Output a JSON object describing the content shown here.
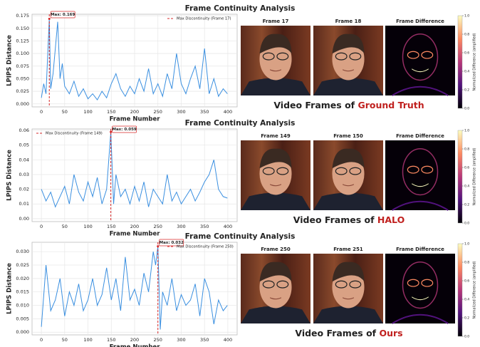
{
  "chart_data": [
    {
      "type": "line",
      "title": "Frame Continuity Analysis",
      "xlabel": "Frame Number",
      "ylabel": "LPIPS Distance",
      "color": "#3a8fe0",
      "grid": true,
      "legend": "upper right",
      "x": [
        0,
        5,
        10,
        17,
        20,
        25,
        30,
        35,
        40,
        45,
        50,
        60,
        70,
        80,
        90,
        100,
        110,
        120,
        130,
        140,
        150,
        160,
        170,
        180,
        190,
        200,
        210,
        220,
        230,
        240,
        250,
        260,
        270,
        280,
        290,
        300,
        310,
        320,
        330,
        340,
        350,
        360,
        370,
        380,
        390,
        399
      ],
      "values": [
        0.012,
        0.04,
        0.02,
        0.169,
        0.03,
        0.06,
        0.11,
        0.163,
        0.05,
        0.08,
        0.035,
        0.02,
        0.045,
        0.015,
        0.03,
        0.01,
        0.02,
        0.008,
        0.025,
        0.012,
        0.04,
        0.06,
        0.03,
        0.015,
        0.035,
        0.02,
        0.05,
        0.025,
        0.07,
        0.02,
        0.04,
        0.015,
        0.06,
        0.03,
        0.1,
        0.04,
        0.02,
        0.05,
        0.075,
        0.03,
        0.11,
        0.02,
        0.05,
        0.015,
        0.03,
        0.02
      ],
      "xlim": [
        -20,
        420
      ],
      "xticks": [
        0,
        50,
        100,
        150,
        200,
        250,
        300,
        350,
        400
      ],
      "ylim": [
        -0.006,
        0.178
      ],
      "yticks": [
        {
          "value": 0,
          "label": "0.000"
        },
        {
          "value": 0.025,
          "label": "0.025"
        },
        {
          "value": 0.05,
          "label": "0.050"
        },
        {
          "value": 0.075,
          "label": "0.075"
        },
        {
          "value": 0.1,
          "label": "0.100"
        },
        {
          "value": 0.125,
          "label": "0.125"
        },
        {
          "value": 0.15,
          "label": "0.150"
        },
        {
          "value": 0.175,
          "label": "0.175"
        }
      ],
      "annotation": {
        "x": 17,
        "y": 0.169,
        "text": "Max: 0.169"
      },
      "vline_label": "Max Discontinuity (Frame 17)"
    },
    {
      "type": "line",
      "title": "Frame Continuity Analysis",
      "xlabel": "Frame Number",
      "ylabel": "LPIPS Distance",
      "color": "#3a8fe0",
      "grid": true,
      "legend": "upper left",
      "x": [
        0,
        10,
        20,
        30,
        40,
        50,
        60,
        70,
        80,
        90,
        100,
        110,
        120,
        130,
        140,
        149,
        155,
        160,
        170,
        180,
        190,
        200,
        210,
        220,
        230,
        240,
        250,
        260,
        270,
        280,
        290,
        300,
        310,
        320,
        330,
        340,
        350,
        360,
        370,
        380,
        390,
        399
      ],
      "values": [
        0.02,
        0.012,
        0.018,
        0.008,
        0.015,
        0.022,
        0.01,
        0.03,
        0.018,
        0.012,
        0.025,
        0.015,
        0.028,
        0.01,
        0.02,
        0.059,
        0.01,
        0.03,
        0.015,
        0.02,
        0.01,
        0.022,
        0.012,
        0.025,
        0.008,
        0.02,
        0.015,
        0.01,
        0.03,
        0.012,
        0.018,
        0.01,
        0.015,
        0.02,
        0.012,
        0.018,
        0.025,
        0.03,
        0.04,
        0.02,
        0.015,
        0.014
      ],
      "xlim": [
        -20,
        420
      ],
      "xticks": [
        0,
        50,
        100,
        150,
        200,
        250,
        300,
        350,
        400
      ],
      "ylim": [
        -0.002,
        0.061
      ],
      "yticks": [
        {
          "value": 0,
          "label": "0.00"
        },
        {
          "value": 0.01,
          "label": "0.01"
        },
        {
          "value": 0.02,
          "label": "0.02"
        },
        {
          "value": 0.03,
          "label": "0.03"
        },
        {
          "value": 0.04,
          "label": "0.04"
        },
        {
          "value": 0.05,
          "label": "0.05"
        },
        {
          "value": 0.06,
          "label": "0.06"
        }
      ],
      "annotation": {
        "x": 149,
        "y": 0.059,
        "text": "Max: 0.059"
      },
      "vline_label": "Max Discontinuity (Frame 149)"
    },
    {
      "type": "line",
      "title": "Frame Continuity Analysis",
      "xlabel": "Frame Number",
      "ylabel": "LPIPS Distance",
      "color": "#3a8fe0",
      "grid": true,
      "legend": "upper right",
      "x": [
        0,
        10,
        20,
        30,
        40,
        50,
        60,
        70,
        80,
        90,
        100,
        110,
        120,
        130,
        140,
        150,
        160,
        170,
        180,
        190,
        200,
        210,
        220,
        230,
        240,
        245,
        250,
        255,
        260,
        270,
        280,
        290,
        300,
        310,
        320,
        330,
        340,
        350,
        360,
        370,
        380,
        390,
        399
      ],
      "values": [
        0.002,
        0.025,
        0.008,
        0.012,
        0.02,
        0.006,
        0.015,
        0.01,
        0.018,
        0.008,
        0.012,
        0.02,
        0.01,
        0.014,
        0.024,
        0.012,
        0.02,
        0.008,
        0.028,
        0.012,
        0.016,
        0.01,
        0.022,
        0.015,
        0.03,
        0.025,
        0.032,
        0.001,
        0.015,
        0.01,
        0.02,
        0.008,
        0.014,
        0.01,
        0.012,
        0.018,
        0.006,
        0.02,
        0.015,
        0.003,
        0.012,
        0.008,
        0.01
      ],
      "xlim": [
        -20,
        420
      ],
      "xticks": [
        0,
        50,
        100,
        150,
        200,
        250,
        300,
        350,
        400
      ],
      "ylim": [
        -0.001,
        0.0335
      ],
      "yticks": [
        {
          "value": 0,
          "label": "0.000"
        },
        {
          "value": 0.005,
          "label": "0.005"
        },
        {
          "value": 0.01,
          "label": "0.010"
        },
        {
          "value": 0.015,
          "label": "0.015"
        },
        {
          "value": 0.02,
          "label": "0.020"
        },
        {
          "value": 0.025,
          "label": "0.025"
        },
        {
          "value": 0.03,
          "label": "0.030"
        }
      ],
      "annotation": {
        "x": 250,
        "y": 0.032,
        "text": "Max: 0.032"
      },
      "vline_label": "Max Discontinuity (Frame 250)"
    }
  ],
  "panels": [
    {
      "frames": [
        "Frame 17",
        "Frame 18"
      ],
      "diff_title": "Frame Difference",
      "caption": "Video Frames of ",
      "caption_highlight": "Ground Truth"
    },
    {
      "frames": [
        "Frame 149",
        "Frame 150"
      ],
      "diff_title": "Frame Difference",
      "caption": "Video Frames of ",
      "caption_highlight": "HALO"
    },
    {
      "frames": [
        "Frame 250",
        "Frame 251"
      ],
      "diff_title": "Frame Difference",
      "caption": "Video Frames of ",
      "caption_highlight": "Ours"
    }
  ],
  "colorbar": {
    "label": "Normalized Difference (amplified)",
    "ticks": [
      {
        "value": 0,
        "label": "0.0"
      },
      {
        "value": 0.2,
        "label": "0.2"
      },
      {
        "value": 0.4,
        "label": "0.4"
      },
      {
        "value": 0.6,
        "label": "0.6"
      },
      {
        "value": 0.8,
        "label": "0.8"
      },
      {
        "value": 1,
        "label": "1.0"
      }
    ]
  }
}
